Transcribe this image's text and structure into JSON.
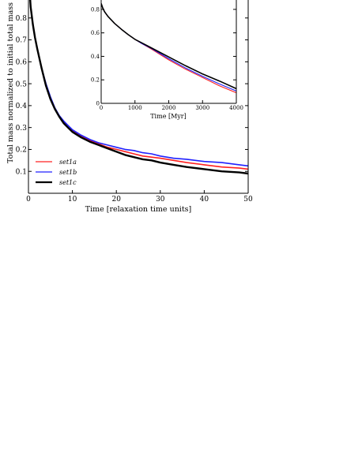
{
  "chart_data": [
    {
      "id": "main",
      "type": "line",
      "xlabel": "Time [relaxation time units]",
      "ylabel": "Total mass normalized to initial total mass",
      "xlim": [
        0,
        50
      ],
      "ylim": [
        0,
        0.9
      ],
      "xticks": [
        0,
        10,
        20,
        30,
        40,
        50
      ],
      "yticks": [
        0.1,
        0.2,
        0.3,
        0.4,
        0.5,
        0.6,
        0.7,
        0.8
      ],
      "legend_position": "bottom-left",
      "series": [
        {
          "name": "set1a",
          "color": "#ff2020",
          "x": [
            0,
            0.5,
            1,
            1.5,
            2,
            3,
            4,
            5,
            6,
            7,
            8,
            9,
            10,
            12,
            14,
            16,
            18,
            20,
            22,
            24,
            26,
            28,
            30,
            33,
            36,
            40,
            44,
            48,
            50
          ],
          "y": [
            1.0,
            0.85,
            0.77,
            0.71,
            0.66,
            0.57,
            0.49,
            0.43,
            0.385,
            0.35,
            0.325,
            0.3,
            0.285,
            0.26,
            0.24,
            0.225,
            0.21,
            0.2,
            0.19,
            0.18,
            0.17,
            0.165,
            0.16,
            0.15,
            0.14,
            0.13,
            0.12,
            0.115,
            0.11
          ]
        },
        {
          "name": "set1b",
          "color": "#2020ff",
          "x": [
            0,
            0.5,
            1,
            1.5,
            2,
            3,
            4,
            5,
            6,
            7,
            8,
            9,
            10,
            12,
            14,
            16,
            18,
            20,
            22,
            24,
            26,
            28,
            30,
            33,
            36,
            40,
            44,
            48,
            50
          ],
          "y": [
            1.0,
            0.85,
            0.77,
            0.71,
            0.66,
            0.57,
            0.5,
            0.44,
            0.39,
            0.355,
            0.33,
            0.31,
            0.29,
            0.265,
            0.245,
            0.23,
            0.22,
            0.21,
            0.2,
            0.195,
            0.185,
            0.18,
            0.17,
            0.16,
            0.155,
            0.145,
            0.14,
            0.13,
            0.125
          ]
        },
        {
          "name": "set1c",
          "color": "#000000",
          "x": [
            0,
            0.5,
            1,
            1.5,
            2,
            3,
            4,
            5,
            6,
            7,
            8,
            9,
            10,
            12,
            14,
            16,
            18,
            20,
            22,
            24,
            26,
            28,
            30,
            33,
            36,
            40,
            44,
            48,
            50
          ],
          "y": [
            1.0,
            0.85,
            0.77,
            0.71,
            0.66,
            0.57,
            0.49,
            0.43,
            0.385,
            0.35,
            0.32,
            0.3,
            0.28,
            0.255,
            0.235,
            0.22,
            0.205,
            0.19,
            0.175,
            0.165,
            0.155,
            0.15,
            0.14,
            0.13,
            0.12,
            0.11,
            0.1,
            0.095,
            0.09
          ]
        }
      ]
    },
    {
      "id": "inset",
      "type": "line",
      "xlabel": "Time [Myr]",
      "xlim": [
        0,
        4000
      ],
      "ylim": [
        0,
        0.9
      ],
      "xticks": [
        0,
        1000,
        2000,
        3000,
        4000
      ],
      "yticks": [
        0,
        0.2,
        0.4,
        0.6,
        0.8
      ],
      "series": [
        {
          "color": "#ff2020",
          "x": [
            0,
            50,
            100,
            200,
            400,
            600,
            800,
            1000,
            1200,
            1500,
            2000,
            2500,
            3000,
            3500,
            4000
          ],
          "y": [
            0.85,
            0.81,
            0.78,
            0.74,
            0.68,
            0.63,
            0.585,
            0.545,
            0.51,
            0.46,
            0.37,
            0.29,
            0.22,
            0.15,
            0.09
          ]
        },
        {
          "color": "#2020ff",
          "x": [
            0,
            50,
            100,
            200,
            400,
            600,
            800,
            1000,
            1200,
            1500,
            2000,
            2500,
            3000,
            3500,
            4000
          ],
          "y": [
            0.85,
            0.81,
            0.78,
            0.74,
            0.68,
            0.63,
            0.585,
            0.545,
            0.51,
            0.465,
            0.38,
            0.3,
            0.23,
            0.165,
            0.105
          ]
        },
        {
          "color": "#000000",
          "x": [
            0,
            50,
            100,
            200,
            400,
            600,
            800,
            1000,
            1200,
            1500,
            2000,
            2500,
            3000,
            3500,
            4000
          ],
          "y": [
            0.85,
            0.81,
            0.78,
            0.74,
            0.68,
            0.63,
            0.585,
            0.545,
            0.515,
            0.47,
            0.395,
            0.32,
            0.25,
            0.19,
            0.125
          ]
        }
      ]
    }
  ]
}
